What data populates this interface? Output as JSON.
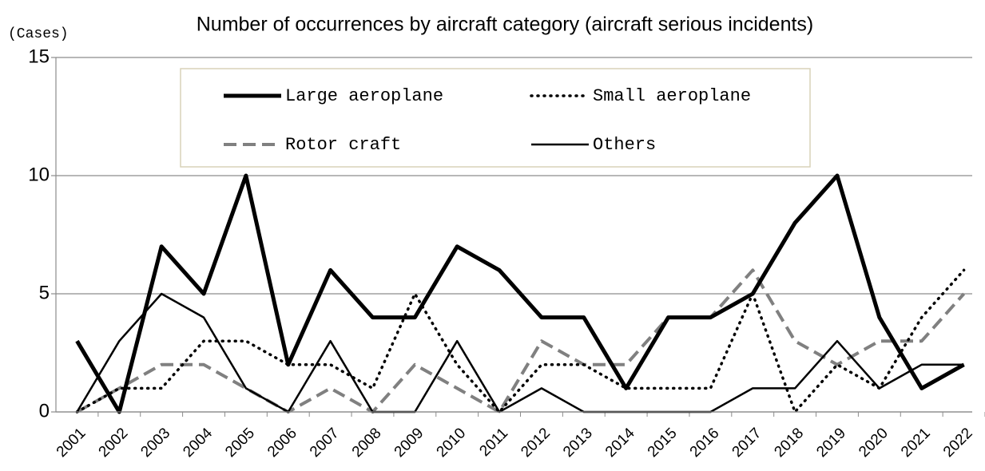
{
  "chart_data": {
    "type": "line",
    "title": "Number of occurrences by aircraft category (aircraft serious incidents)",
    "y_label": "(Cases)",
    "categories": [
      "2001",
      "2002",
      "2003",
      "2004",
      "2005",
      "2006",
      "2007",
      "2008",
      "2009",
      "2010",
      "2011",
      "2012",
      "2013",
      "2014",
      "2015",
      "2016",
      "2017",
      "2018",
      "2019",
      "2020",
      "2021",
      "2022"
    ],
    "series": [
      {
        "name": "Large aeroplane",
        "color": "#000000",
        "style": "thick",
        "values": [
          3,
          0,
          7,
          5,
          10,
          2,
          6,
          4,
          4,
          7,
          6,
          4,
          4,
          1,
          4,
          4,
          5,
          8,
          10,
          4,
          1,
          2
        ]
      },
      {
        "name": "Small aeroplane",
        "color": "#000000",
        "style": "dotted",
        "values": [
          0,
          1,
          1,
          3,
          3,
          2,
          2,
          1,
          5,
          2,
          0,
          2,
          2,
          1,
          1,
          1,
          5,
          0,
          2,
          1,
          4,
          6
        ]
      },
      {
        "name": "Rotor craft",
        "color": "#808080",
        "style": "dashed",
        "values": [
          0,
          1,
          2,
          2,
          1,
          0,
          1,
          0,
          2,
          1,
          0,
          3,
          2,
          2,
          4,
          4,
          6,
          3,
          2,
          3,
          3,
          5
        ]
      },
      {
        "name": "Others",
        "color": "#000000",
        "style": "solid",
        "values": [
          0,
          3,
          5,
          4,
          1,
          0,
          3,
          0,
          0,
          3,
          0,
          1,
          0,
          0,
          0,
          0,
          1,
          1,
          3,
          1,
          2,
          2
        ]
      }
    ],
    "ylim": [
      0,
      15
    ],
    "yticks": [
      0,
      5,
      10,
      15
    ],
    "grid": true
  }
}
